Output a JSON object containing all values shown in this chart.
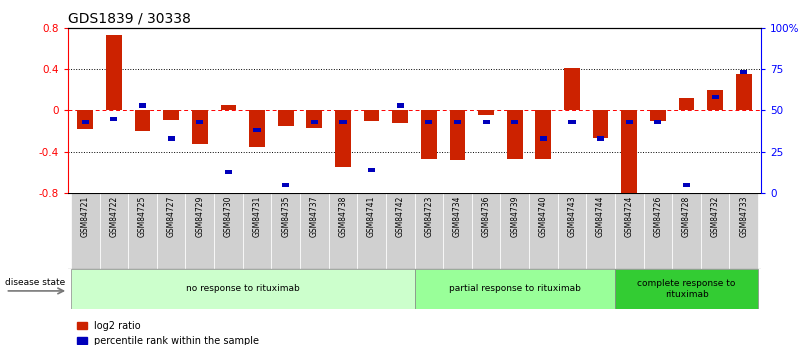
{
  "title": "GDS1839 / 30338",
  "samples": [
    "GSM84721",
    "GSM84722",
    "GSM84725",
    "GSM84727",
    "GSM84729",
    "GSM84730",
    "GSM84731",
    "GSM84735",
    "GSM84737",
    "GSM84738",
    "GSM84741",
    "GSM84742",
    "GSM84723",
    "GSM84734",
    "GSM84736",
    "GSM84739",
    "GSM84740",
    "GSM84743",
    "GSM84744",
    "GSM84724",
    "GSM84726",
    "GSM84728",
    "GSM84732",
    "GSM84733"
  ],
  "log2_ratio": [
    -0.18,
    0.73,
    -0.2,
    -0.09,
    -0.32,
    0.05,
    -0.35,
    -0.15,
    -0.17,
    -0.55,
    -0.1,
    -0.12,
    -0.47,
    -0.48,
    -0.04,
    -0.47,
    -0.47,
    0.41,
    -0.27,
    -0.82,
    -0.1,
    0.12,
    0.2,
    0.35
  ],
  "percentile_rank": [
    43,
    45,
    53,
    33,
    43,
    13,
    38,
    5,
    43,
    43,
    14,
    53,
    43,
    43,
    43,
    43,
    33,
    43,
    33,
    43,
    43,
    5,
    58,
    73
  ],
  "groups": [
    {
      "label": "no response to rituximab",
      "start": 0,
      "end": 12,
      "color": "#ccffcc"
    },
    {
      "label": "partial response to rituximab",
      "start": 12,
      "end": 19,
      "color": "#99ff99"
    },
    {
      "label": "complete response to\nrituximab",
      "start": 19,
      "end": 24,
      "color": "#33cc33"
    }
  ],
  "bar_color_red": "#cc2200",
  "bar_color_blue": "#0000bb",
  "ylim": [
    -0.8,
    0.8
  ],
  "y_ticks": [
    -0.8,
    -0.4,
    0.0,
    0.4,
    0.8
  ],
  "y2_ticks": [
    0,
    25,
    50,
    75,
    100
  ],
  "legend_label_red": "log2 ratio",
  "legend_label_blue": "percentile rank within the sample",
  "disease_state_label": "disease state",
  "title_fontsize": 10,
  "tick_fontsize": 7.5,
  "bar_width": 0.55,
  "blue_bar_width": 0.25,
  "blue_bar_height": 0.04
}
